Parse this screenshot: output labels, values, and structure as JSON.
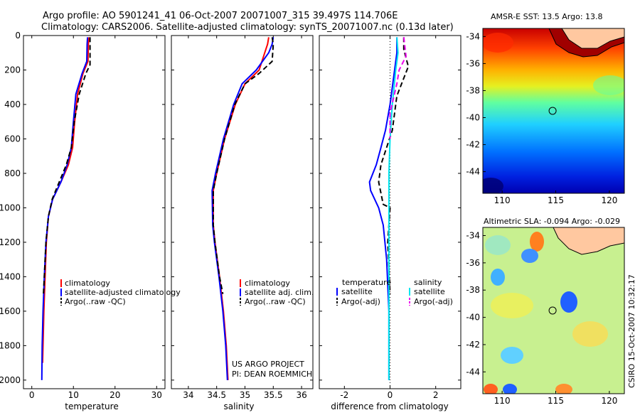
{
  "title_line1": "Argo profile: AO 5901241_41 06-Oct-2007 20071007_315 39.497S 114.706E",
  "title_line2": "Climatology: CARS2006. Satellite-adjusted climatology: synTS_20071007.nc (0.13d later)",
  "credit_line1": "US ARGO PROJECT",
  "credit_line2": "PI: DEAN ROEMMICH",
  "csiro_stamp": "CSIRO 15-Oct-2007 10:32:17",
  "colors": {
    "climatology": "#ff0000",
    "satellite": "#0000ff",
    "argo": "#000000",
    "sal_satellite": "#00e5ee",
    "sal_argo": "#ee00ee",
    "land": "#ffc8a0"
  },
  "legend_temp": [
    "climatology",
    "satellite-adjusted climatology",
    "Argo(..raw -QC)"
  ],
  "legend_sal": [
    "climatology",
    "satellite adj. clim.",
    "Argo(..raw -QC)"
  ],
  "legend_diff": {
    "head_temp": "temperature",
    "head_sal": "salinity",
    "items_temp": [
      "satellite",
      "Argo(-adj)"
    ],
    "items_sal": [
      "satellite",
      "Argo(-adj)"
    ]
  },
  "maps": {
    "sst_title": "AMSR-E SST: 13.5 Argo: 13.8",
    "sla_title": "Altimetric SLA: -0.094 Argo: -0.029",
    "xticks": [
      110,
      115,
      120
    ],
    "yticks": [
      -34,
      -36,
      -38,
      -40,
      -42,
      -44
    ],
    "xlim": [
      108.2,
      121.4
    ],
    "ylim": [
      -45.6,
      -33.4
    ],
    "profile_location": {
      "lon": 114.706,
      "lat": -39.497
    }
  },
  "chart_data": [
    {
      "type": "line",
      "xlabel": "temperature",
      "ylabel": "",
      "xlim": [
        -2,
        32
      ],
      "ylim": [
        2050,
        0
      ],
      "xticks": [
        0,
        10,
        20,
        30
      ],
      "yticks": [
        0,
        200,
        400,
        600,
        800,
        1000,
        1200,
        1400,
        1600,
        1800,
        2000
      ],
      "series": [
        {
          "name": "climatology",
          "x": [
            13.7,
            13.6,
            13.5,
            12.3,
            11.0,
            10.3,
            9.8,
            8.8,
            7.0,
            5.0,
            4.0,
            3.5,
            3.2,
            2.9,
            2.7,
            2.6
          ],
          "y": [
            10,
            50,
            150,
            220,
            340,
            500,
            650,
            750,
            850,
            950,
            1050,
            1200,
            1400,
            1600,
            1800,
            1900
          ]
        },
        {
          "name": "satellite-adjusted climatology",
          "x": [
            13.4,
            13.3,
            13.2,
            12.1,
            10.6,
            10.0,
            9.5,
            8.5,
            7.0,
            5.0,
            4.0,
            3.4,
            3.0,
            2.7,
            2.5,
            2.4
          ],
          "y": [
            10,
            50,
            150,
            220,
            340,
            500,
            650,
            750,
            850,
            950,
            1050,
            1200,
            1400,
            1600,
            1800,
            2000
          ]
        },
        {
          "name": "Argo(..raw -QC)",
          "x": [
            14.0,
            14.0,
            14.0,
            13.0,
            11.4,
            10.2,
            9.5,
            8.3,
            6.6,
            4.9,
            4.0,
            3.4,
            3.0,
            2.8
          ],
          "y": [
            10,
            50,
            170,
            220,
            340,
            500,
            650,
            750,
            850,
            950,
            1050,
            1200,
            1400,
            1500
          ]
        }
      ]
    },
    {
      "type": "line",
      "xlabel": "salinity",
      "ylabel": "",
      "xlim": [
        33.7,
        36.2
      ],
      "ylim": [
        2050,
        0
      ],
      "xticks": [
        34,
        34.5,
        35,
        35.5,
        36
      ],
      "series": [
        {
          "name": "climatology",
          "x": [
            35.42,
            35.4,
            35.35,
            35.25,
            35.0,
            34.83,
            34.64,
            34.5,
            34.44,
            34.44,
            34.47,
            34.55,
            34.62,
            34.67,
            34.7
          ],
          "y": [
            10,
            50,
            100,
            200,
            280,
            400,
            600,
            800,
            900,
            1100,
            1200,
            1400,
            1600,
            1800,
            2000
          ]
        },
        {
          "name": "satellite adj. clim.",
          "x": [
            35.5,
            35.48,
            35.42,
            35.2,
            34.95,
            34.8,
            34.62,
            34.48,
            34.42,
            34.43,
            34.46,
            34.54,
            34.61,
            34.66,
            34.69
          ],
          "y": [
            10,
            50,
            100,
            200,
            280,
            400,
            600,
            800,
            900,
            1100,
            1200,
            1400,
            1600,
            1800,
            2000
          ]
        },
        {
          "name": "Argo(..raw -QC)",
          "x": [
            35.48,
            35.5,
            35.48,
            35.25,
            35.0,
            34.82,
            34.64,
            34.5,
            34.44,
            34.44,
            34.47,
            34.55,
            34.61
          ],
          "y": [
            10,
            50,
            150,
            220,
            280,
            400,
            600,
            800,
            900,
            1100,
            1200,
            1400,
            1500
          ]
        }
      ]
    },
    {
      "type": "line",
      "xlabel": "difference from climatology",
      "ylabel": "",
      "xlim": [
        -3.1,
        3.1
      ],
      "ylim": [
        2050,
        0
      ],
      "xticks": [
        -2,
        0,
        2
      ],
      "series": [
        {
          "name": "temperature satellite",
          "x": [
            0.3,
            0.3,
            0.2,
            0.0,
            -0.2,
            -0.4,
            -0.6,
            -0.9,
            -0.85,
            -0.5,
            -0.3,
            -0.15,
            -0.05,
            -0.05
          ],
          "y": [
            10,
            100,
            200,
            400,
            550,
            650,
            750,
            850,
            900,
            1000,
            1100,
            1300,
            1600,
            2000
          ]
        },
        {
          "name": "temperature Argo(-adj)",
          "x": [
            0.6,
            0.6,
            0.8,
            0.3,
            0.1,
            -0.4,
            -0.5,
            -0.3,
            0.0,
            -0.1,
            0.0
          ],
          "y": [
            10,
            80,
            180,
            350,
            550,
            750,
            850,
            980,
            1000,
            1200,
            1500
          ]
        },
        {
          "name": "salinity satellite",
          "x": [
            0.3,
            0.35,
            0.25,
            0.1,
            0.0,
            -0.05,
            -0.05,
            -0.05,
            -0.05
          ],
          "y": [
            10,
            100,
            200,
            400,
            600,
            800,
            1200,
            1600,
            2000
          ]
        },
        {
          "name": "salinity Argo(-adj)",
          "x": [
            0.6,
            0.7,
            0.4,
            0.3,
            0.0,
            0.0
          ],
          "y": [
            10,
            120,
            200,
            280,
            450,
            600
          ]
        }
      ]
    }
  ]
}
